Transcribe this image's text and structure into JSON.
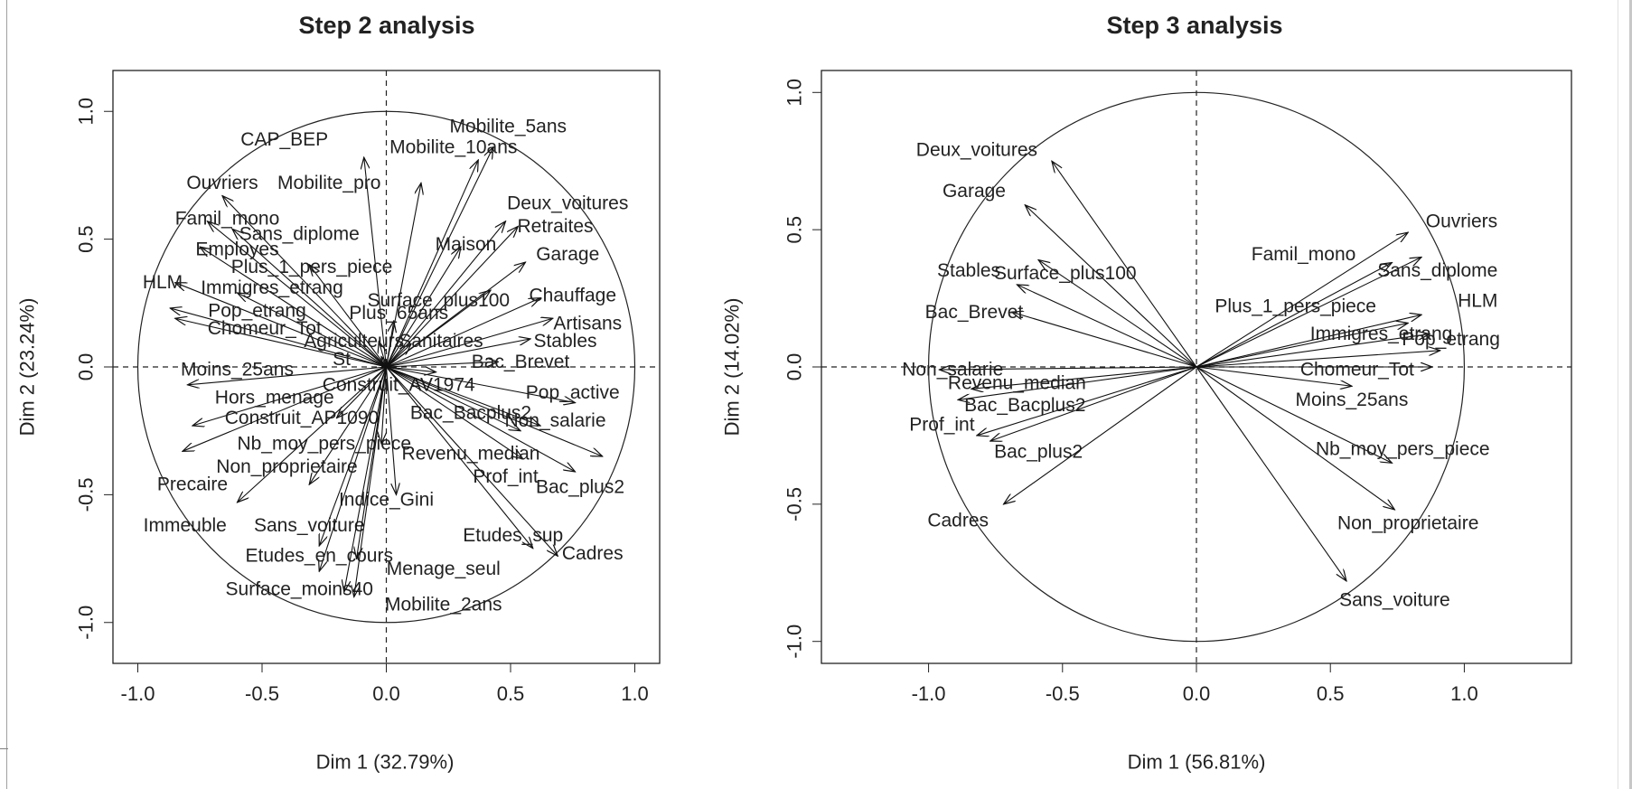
{
  "chart_data": [
    {
      "type": "scatter",
      "title": "Step 2 analysis",
      "xlabel": "Dim 1 (32.79%)",
      "ylabel": "Dim 2 (23.24%)",
      "xlim": [
        -1.1,
        1.1
      ],
      "ylim": [
        -1.16,
        1.16
      ],
      "x_ticks": [
        "-1.0",
        "-0.5",
        "0.0",
        "0.5",
        "1.0"
      ],
      "y_ticks": [
        "-1.0",
        "-0.5",
        "0.0",
        "0.5",
        "1.0"
      ],
      "x_tick_values": [
        -1,
        -0.5,
        0,
        0.5,
        1
      ],
      "y_tick_values": [
        -1,
        -0.5,
        0,
        0.5,
        1
      ],
      "variables": [
        {
          "name": "CAP_BEP",
          "x": -0.09,
          "y": 0.82,
          "lx": -0.41,
          "ly": 0.89
        },
        {
          "name": "Mobilite_pro",
          "x": 0.14,
          "y": 0.72,
          "lx": -0.23,
          "ly": 0.72
        },
        {
          "name": "Mobilite_10ans",
          "x": 0.37,
          "y": 0.81,
          "lx": 0.27,
          "ly": 0.86
        },
        {
          "name": "Mobilite_5ans",
          "x": 0.43,
          "y": 0.86,
          "lx": 0.49,
          "ly": 0.94
        },
        {
          "name": "Ouvriers",
          "x": -0.66,
          "y": 0.67,
          "lx": -0.66,
          "ly": 0.72
        },
        {
          "name": "Famil_mono",
          "x": -0.72,
          "y": 0.57,
          "lx": -0.64,
          "ly": 0.58
        },
        {
          "name": "Sans_diplome",
          "x": -0.62,
          "y": 0.54,
          "lx": -0.35,
          "ly": 0.52
        },
        {
          "name": "Employes",
          "x": -0.75,
          "y": 0.47,
          "lx": -0.6,
          "ly": 0.46
        },
        {
          "name": "Plus_1_pers_piece",
          "x": -0.31,
          "y": 0.4,
          "lx": -0.3,
          "ly": 0.39
        },
        {
          "name": "Maison",
          "x": 0.3,
          "y": 0.47,
          "lx": 0.32,
          "ly": 0.48
        },
        {
          "name": "Deux_voitures",
          "x": 0.48,
          "y": 0.57,
          "lx": 0.73,
          "ly": 0.64
        },
        {
          "name": "Retraites",
          "x": 0.53,
          "y": 0.55,
          "lx": 0.68,
          "ly": 0.55
        },
        {
          "name": "Garage",
          "x": 0.56,
          "y": 0.41,
          "lx": 0.73,
          "ly": 0.44
        },
        {
          "name": "HLM",
          "x": -0.85,
          "y": 0.33,
          "lx": -0.9,
          "ly": 0.33
        },
        {
          "name": "Immigres_etrang",
          "x": -0.6,
          "y": 0.29,
          "lx": -0.46,
          "ly": 0.31
        },
        {
          "name": "Surface_plus100",
          "x": 0.42,
          "y": 0.3,
          "lx": 0.21,
          "ly": 0.26
        },
        {
          "name": "Chauffage",
          "x": 0.62,
          "y": 0.27,
          "lx": 0.75,
          "ly": 0.28
        },
        {
          "name": "Pop_etrang",
          "x": -0.87,
          "y": 0.23,
          "lx": -0.52,
          "ly": 0.22
        },
        {
          "name": "Plus_65ans",
          "x": 0.03,
          "y": 0.18,
          "lx": 0.05,
          "ly": 0.21
        },
        {
          "name": "Artisans",
          "x": 0.67,
          "y": 0.19,
          "lx": 0.81,
          "ly": 0.17
        },
        {
          "name": "Chomeur_Tot",
          "x": -0.85,
          "y": 0.19,
          "lx": -0.49,
          "ly": 0.15
        },
        {
          "name": "Agriculteurs",
          "x": -0.03,
          "y": 0.1,
          "lx": -0.13,
          "ly": 0.1
        },
        {
          "name": "Sanitaires",
          "x": 0.1,
          "y": 0.09,
          "lx": 0.22,
          "ly": 0.1
        },
        {
          "name": "Stables",
          "x": 0.58,
          "y": 0.11,
          "lx": 0.72,
          "ly": 0.1
        },
        {
          "name": "St",
          "x": -0.02,
          "y": 0.04,
          "lx": -0.18,
          "ly": 0.03
        },
        {
          "name": "Bac_Brevet",
          "x": 0.45,
          "y": 0.02,
          "lx": 0.54,
          "ly": 0.02
        },
        {
          "name": "Moins_25ans",
          "x": -0.8,
          "y": -0.07,
          "lx": -0.6,
          "ly": -0.01
        },
        {
          "name": "Construit_AV1974",
          "x": 0.2,
          "y": -0.02,
          "lx": 0.05,
          "ly": -0.07
        },
        {
          "name": "Pop_active",
          "x": 0.76,
          "y": -0.14,
          "lx": 0.75,
          "ly": -0.1
        },
        {
          "name": "Hors_menage",
          "x": -0.78,
          "y": -0.23,
          "lx": -0.45,
          "ly": -0.12
        },
        {
          "name": "Bac_Bacplus2",
          "x": 0.54,
          "y": -0.25,
          "lx": 0.34,
          "ly": -0.18
        },
        {
          "name": "Non_salarie",
          "x": 0.62,
          "y": -0.23,
          "lx": 0.68,
          "ly": -0.21
        },
        {
          "name": "Construit_AP1090",
          "x": -0.2,
          "y": -0.2,
          "lx": -0.34,
          "ly": -0.2
        },
        {
          "name": "Nb_moy_pers_piece",
          "x": -0.02,
          "y": -0.3,
          "lx": -0.25,
          "ly": -0.3
        },
        {
          "name": "Revenu_median",
          "x": 0.55,
          "y": -0.36,
          "lx": 0.34,
          "ly": -0.34
        },
        {
          "name": "Non_proprietaire",
          "x": -0.31,
          "y": -0.46,
          "lx": -0.4,
          "ly": -0.39
        },
        {
          "name": "Precaire",
          "x": -0.82,
          "y": -0.33,
          "lx": -0.78,
          "ly": -0.46
        },
        {
          "name": "Prof_int",
          "x": 0.76,
          "y": -0.41,
          "lx": 0.48,
          "ly": -0.43
        },
        {
          "name": "Bac_plus2",
          "x": 0.87,
          "y": -0.35,
          "lx": 0.78,
          "ly": -0.47
        },
        {
          "name": "Indice_Gini",
          "x": 0.04,
          "y": -0.5,
          "lx": 0.0,
          "ly": -0.52
        },
        {
          "name": "Immeuble",
          "x": -0.6,
          "y": -0.53,
          "lx": -0.81,
          "ly": -0.62
        },
        {
          "name": "Sans_voiture",
          "x": -0.27,
          "y": -0.7,
          "lx": -0.31,
          "ly": -0.62
        },
        {
          "name": "Etudes_sup",
          "x": 0.59,
          "y": -0.71,
          "lx": 0.51,
          "ly": -0.66
        },
        {
          "name": "Etudes_en_cours",
          "x": -0.27,
          "y": -0.8,
          "lx": -0.27,
          "ly": -0.74
        },
        {
          "name": "Cadres",
          "x": 0.69,
          "y": -0.74,
          "lx": 0.83,
          "ly": -0.73
        },
        {
          "name": "Menage_seul",
          "x": -0.12,
          "y": -0.75,
          "lx": 0.23,
          "ly": -0.79
        },
        {
          "name": "Surface_moins40",
          "x": -0.17,
          "y": -0.88,
          "lx": -0.35,
          "ly": -0.87
        },
        {
          "name": "Mobilite_2ans",
          "x": -0.13,
          "y": -0.9,
          "lx": 0.23,
          "ly": -0.93
        }
      ]
    },
    {
      "type": "scatter",
      "title": "Step 3 analysis",
      "xlabel": "Dim 1 (56.81%)",
      "ylabel": "Dim 2 (14.02%)",
      "xlim": [
        -1.4,
        1.4
      ],
      "ylim": [
        -1.08,
        1.08
      ],
      "x_ticks": [
        "-1.0",
        "-0.5",
        "0.0",
        "0.5",
        "1.0"
      ],
      "y_ticks": [
        "-1.0",
        "-0.5",
        "0.0",
        "0.5",
        "1.0"
      ],
      "x_tick_values": [
        -1,
        -0.5,
        0,
        0.5,
        1
      ],
      "y_tick_values": [
        -1,
        -0.5,
        0,
        0.5,
        1
      ],
      "variables": [
        {
          "name": "Deux_voitures",
          "x": -0.54,
          "y": 0.75,
          "lx": -0.82,
          "ly": 0.79
        },
        {
          "name": "Garage",
          "x": -0.64,
          "y": 0.59,
          "lx": -0.83,
          "ly": 0.64
        },
        {
          "name": "Stables",
          "x": -0.67,
          "y": 0.3,
          "lx": -0.85,
          "ly": 0.35
        },
        {
          "name": "Surface_plus100",
          "x": -0.59,
          "y": 0.39,
          "lx": -0.49,
          "ly": 0.34
        },
        {
          "name": "Bac_Brevet",
          "x": -0.69,
          "y": 0.2,
          "lx": -0.83,
          "ly": 0.2
        },
        {
          "name": "Non_salarie",
          "x": -0.96,
          "y": -0.01,
          "lx": -0.91,
          "ly": -0.01
        },
        {
          "name": "Revenu_median",
          "x": -0.84,
          "y": -0.08,
          "lx": -0.67,
          "ly": -0.06
        },
        {
          "name": "Bac_Bacplus2",
          "x": -0.89,
          "y": -0.12,
          "lx": -0.64,
          "ly": -0.14
        },
        {
          "name": "Prof_int",
          "x": -0.82,
          "y": -0.25,
          "lx": -0.95,
          "ly": -0.21
        },
        {
          "name": "Bac_plus2",
          "x": -0.77,
          "y": -0.27,
          "lx": -0.59,
          "ly": -0.31
        },
        {
          "name": "Cadres",
          "x": -0.72,
          "y": -0.5,
          "lx": -0.89,
          "ly": -0.56
        },
        {
          "name": "Ouvriers",
          "x": 0.79,
          "y": 0.49,
          "lx": 0.99,
          "ly": 0.53
        },
        {
          "name": "Famil_mono",
          "x": 0.73,
          "y": 0.38,
          "lx": 0.4,
          "ly": 0.41
        },
        {
          "name": "Sans_diplome",
          "x": 0.84,
          "y": 0.4,
          "lx": 0.9,
          "ly": 0.35
        },
        {
          "name": "HLM",
          "x": 0.84,
          "y": 0.19,
          "lx": 1.05,
          "ly": 0.24
        },
        {
          "name": "Plus_1_pers_piece",
          "x": 0.79,
          "y": 0.16,
          "lx": 0.37,
          "ly": 0.22
        },
        {
          "name": "Immigres_etrang",
          "x": 0.87,
          "y": 0.12,
          "lx": 0.69,
          "ly": 0.12
        },
        {
          "name": "Pop_etrang",
          "x": 0.91,
          "y": 0.06,
          "lx": 0.95,
          "ly": 0.1
        },
        {
          "name": "Chomeur_Tot",
          "x": 0.88,
          "y": 0.0,
          "lx": 0.6,
          "ly": -0.01
        },
        {
          "name": "Moins_25ans",
          "x": 0.58,
          "y": -0.07,
          "lx": 0.58,
          "ly": -0.12
        },
        {
          "name": "Nb_moy_pers_piece",
          "x": 0.73,
          "y": -0.35,
          "lx": 0.77,
          "ly": -0.3
        },
        {
          "name": "Non_proprietaire",
          "x": 0.74,
          "y": -0.52,
          "lx": 0.79,
          "ly": -0.57
        },
        {
          "name": "Sans_voiture",
          "x": 0.56,
          "y": -0.78,
          "lx": 0.74,
          "ly": -0.85
        }
      ]
    }
  ]
}
